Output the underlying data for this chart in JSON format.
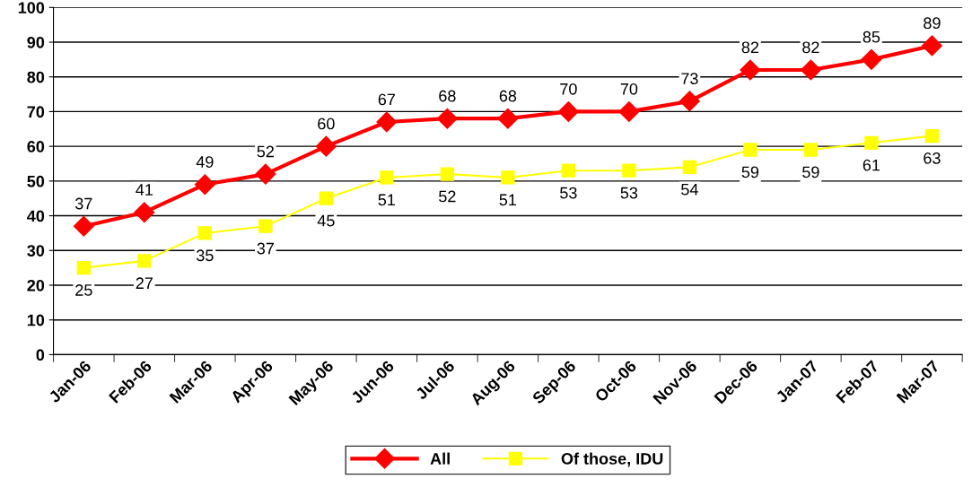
{
  "chart_data": {
    "type": "line",
    "categories": [
      "Jan-06",
      "Feb-06",
      "Mar-06",
      "Apr-06",
      "May-06",
      "Jun-06",
      "Jul-06",
      "Aug-06",
      "Sep-06",
      "Oct-06",
      "Nov-06",
      "Dec-06",
      "Jan-07",
      "Feb-07",
      "Mar-07"
    ],
    "series": [
      {
        "name": "All",
        "color": "#ff0000",
        "marker": "diamond",
        "values": [
          37,
          41,
          49,
          52,
          60,
          67,
          68,
          68,
          70,
          70,
          73,
          82,
          82,
          85,
          89
        ]
      },
      {
        "name": "Of those, IDU",
        "color": "#ffff00",
        "marker": "square",
        "values": [
          25,
          27,
          35,
          37,
          45,
          51,
          52,
          51,
          53,
          53,
          54,
          59,
          59,
          61,
          63
        ]
      }
    ],
    "ylim": [
      0,
      100
    ],
    "yticks": [
      0,
      10,
      20,
      30,
      40,
      50,
      60,
      70,
      80,
      90,
      100
    ],
    "grid": "y",
    "legend": "bottom",
    "data_labels": true,
    "line_style": "solid"
  }
}
